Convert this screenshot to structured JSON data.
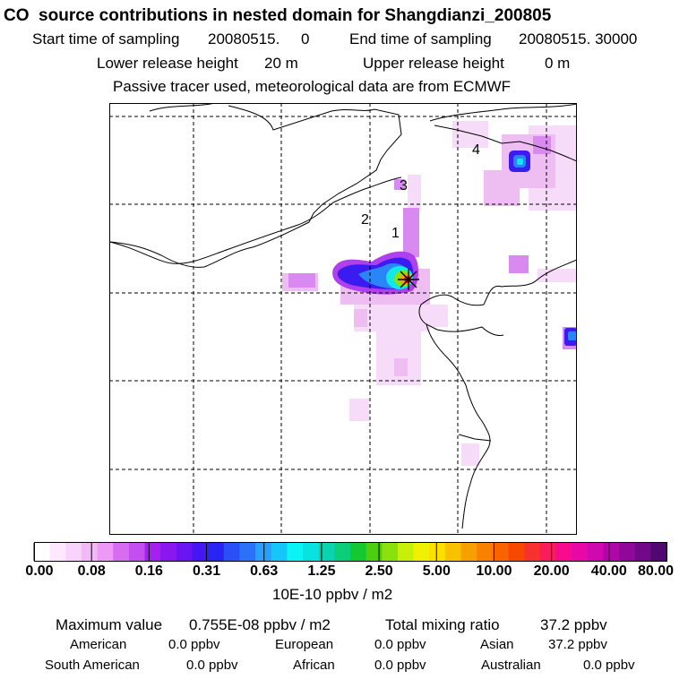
{
  "title": "CO  source contributions in nested domain for Shangdianzi_200805",
  "header": {
    "start_label": "Start time of sampling",
    "start_value": "20080515.     0",
    "end_label": "End time of sampling",
    "end_value": "20080515. 30000",
    "lower_label": "Lower release height",
    "lower_value": "20 m",
    "upper_label": "Upper release height",
    "upper_value": "0 m",
    "tracer_note": "Passive tracer used, meteorological data are from ECMWF"
  },
  "map": {
    "region_labels": [
      "1",
      "2",
      "3",
      "4"
    ],
    "receptor": "Shangdianzi"
  },
  "colorbar": {
    "labels": [
      "0.00",
      "0.08",
      "0.16",
      "0.31",
      "0.63",
      "1.25",
      "2.50",
      "5.00",
      "10.00",
      "20.00",
      "40.00",
      "80.00"
    ],
    "colors": [
      "#ffffff",
      "#fde8fd",
      "#f9d3fb",
      "#f3b8f7",
      "#ee99f5",
      "#d86cf1",
      "#c44ef0",
      "#a51ff0",
      "#8a16f0",
      "#6a14f2",
      "#4616f2",
      "#2a24f2",
      "#2b4ff6",
      "#2a72fa",
      "#29a0fb",
      "#16c6fa",
      "#0af4f5",
      "#08e3e0",
      "#0ad4b0",
      "#0ccd78",
      "#14c834",
      "#4ccf10",
      "#8be10c",
      "#c6f008",
      "#f0f004",
      "#fce000",
      "#f8c200",
      "#f8a000",
      "#f88200",
      "#f86400",
      "#f84800",
      "#f83030",
      "#f81c5c",
      "#f80a8c",
      "#e808a8",
      "#d008b0",
      "#b008a8",
      "#90089a",
      "#700888",
      "#500870"
    ],
    "units": "10E-10 ppbv / m2"
  },
  "stats": {
    "max_label": "Maximum value",
    "max_value": "0.755E-08 ppbv / m2",
    "total_label": "Total mixing ratio",
    "total_value": "37.2 ppbv",
    "sources": [
      {
        "name": "American",
        "value": "0.0 ppbv"
      },
      {
        "name": "European",
        "value": "0.0 ppbv"
      },
      {
        "name": "Asian",
        "value": "37.2 ppbv"
      },
      {
        "name": "South American",
        "value": "0.0 ppbv"
      },
      {
        "name": "African",
        "value": "0.0 ppbv"
      },
      {
        "name": "Australian",
        "value": "0.0 ppbv"
      }
    ]
  }
}
